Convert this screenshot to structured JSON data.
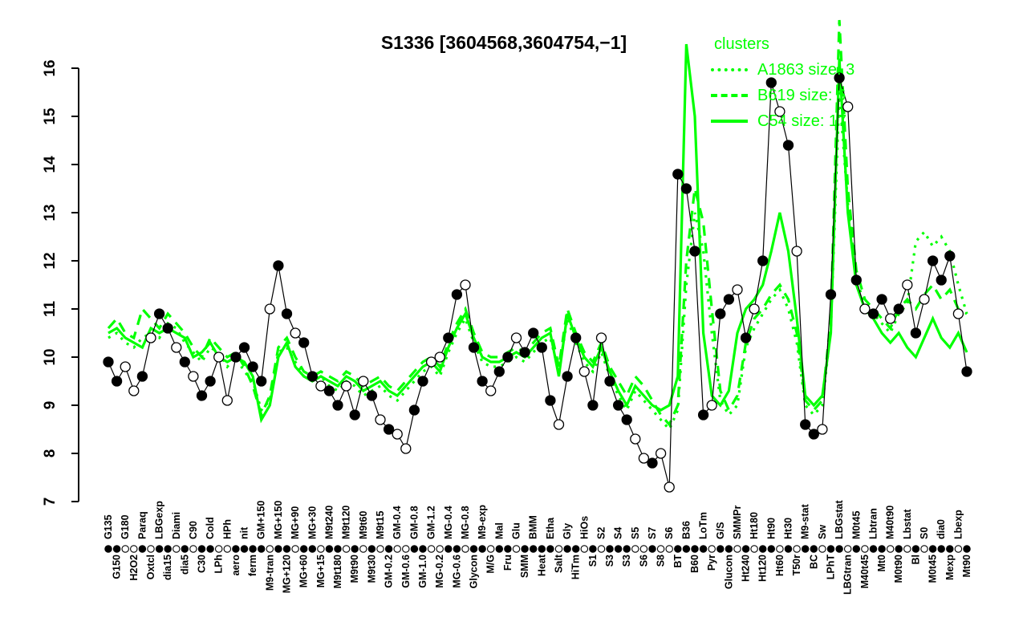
{
  "title": "S1336 [3604568,3604754,−1]",
  "legend": {
    "title": "clusters",
    "entries": [
      {
        "label": "A1863 size: 3",
        "style": "dotted"
      },
      {
        "label": "B619 size: 6",
        "style": "dashed"
      },
      {
        "label": "C54 size: 17",
        "style": "solid"
      }
    ]
  },
  "colors": {
    "cluster_green": "#00FF00",
    "marker_filled": "#000000",
    "marker_open": "#FFFFFF",
    "axis": "#000000"
  },
  "chart_data": {
    "type": "line",
    "title": "S1336 [3604568,3604754,−1]",
    "xlabel": "",
    "ylabel": "",
    "ylim": [
      7,
      16
    ],
    "yticks": [
      7,
      8,
      9,
      10,
      11,
      12,
      13,
      14,
      15,
      16
    ],
    "grid": false,
    "legend_position": "top-right",
    "categories": [
      "G135",
      "G150",
      "G180",
      "H2O2",
      "Paraq",
      "Oxtcl",
      "LBGexp",
      "dia15",
      "Diami",
      "dia5",
      "C90",
      "C30",
      "Cold",
      "LPh",
      "HPh",
      "aero",
      "nit",
      "ferm",
      "GM+150",
      "M9-tran",
      "MG+150",
      "MG+120",
      "MG+90",
      "MG+60",
      "MG+30",
      "MG+15",
      "M9t240",
      "M9t180",
      "M9t120",
      "M9t90",
      "M9t60",
      "M9t30",
      "M9t15",
      "GM-0.2",
      "GM-0.4",
      "GM-0.6",
      "GM-0.8",
      "GM-1.0",
      "GM-1.2",
      "MG-0.2",
      "MG-0.4",
      "MG-0.6",
      "MG-0.8",
      "Glycon",
      "M9-exp",
      "M/G",
      "Mal",
      "Fru",
      "Glu",
      "SMM",
      "BMM",
      "Heat",
      "Etha",
      "Salt",
      "Gly",
      "HiTm",
      "HiOs",
      "S1",
      "S2",
      "S3",
      "S4",
      "S3",
      "S5",
      "S6",
      "S7",
      "S8",
      "S6",
      "BT",
      "B36",
      "B60",
      "LoTm",
      "Pyr",
      "G/S",
      "Glucon",
      "SMMPr",
      "Ht240",
      "Ht180",
      "Ht120",
      "Ht90",
      "Ht60",
      "Ht30",
      "T50r",
      "M9-stat",
      "BC",
      "Sw",
      "LPhT",
      "LBGstat",
      "LBGtran",
      "M0t45",
      "M40t45",
      "Lbtran",
      "Mt0",
      "M40t90",
      "M0t90",
      "Lbstat",
      "Bl",
      "S0",
      "M0t45",
      "dia0",
      "Mexp",
      "Lbexp",
      "Mt90"
    ],
    "series": [
      {
        "name": "S1336",
        "type": "line+markers",
        "color": "#000000",
        "values": [
          9.9,
          9.5,
          9.8,
          9.3,
          9.6,
          10.4,
          10.9,
          10.6,
          10.2,
          9.9,
          9.6,
          9.2,
          9.5,
          10.0,
          9.1,
          10.0,
          10.2,
          9.8,
          9.5,
          11.0,
          11.9,
          10.9,
          10.5,
          10.3,
          9.6,
          9.4,
          9.3,
          9.0,
          9.4,
          8.8,
          9.5,
          9.2,
          8.7,
          8.5,
          8.4,
          8.1,
          8.9,
          9.5,
          9.9,
          10.0,
          10.4,
          11.3,
          11.5,
          10.2,
          9.5,
          9.3,
          9.7,
          10.0,
          10.4,
          10.1,
          10.5,
          10.2,
          9.1,
          8.6,
          9.6,
          10.4,
          9.7,
          9.0,
          10.4,
          9.5,
          9.0,
          8.7,
          8.3,
          7.9,
          7.8,
          8.0,
          7.3,
          13.8,
          13.5,
          12.2,
          8.8,
          9.0,
          10.9,
          11.2,
          11.4,
          10.4,
          11.0,
          12.0,
          15.7,
          15.1,
          14.4,
          12.2,
          8.6,
          8.4,
          8.5,
          11.3,
          15.8,
          15.2,
          11.6,
          11.0,
          10.9,
          11.2,
          10.8,
          11.0,
          11.5,
          10.5,
          11.2,
          12.0,
          11.6,
          12.1,
          10.9,
          9.7
        ],
        "fills": [
          "f",
          "f",
          "o",
          "o",
          "f",
          "o",
          "f",
          "f",
          "o",
          "f",
          "o",
          "f",
          "f",
          "o",
          "o",
          "f",
          "f",
          "f",
          "f",
          "o",
          "f",
          "f",
          "o",
          "f",
          "f",
          "o",
          "f",
          "f",
          "o",
          "f",
          "o",
          "f",
          "o",
          "f",
          "o",
          "o",
          "f",
          "f",
          "o",
          "o",
          "f",
          "f",
          "o",
          "f",
          "f",
          "o",
          "f",
          "f",
          "o",
          "f",
          "f",
          "f",
          "f",
          "o",
          "f",
          "f",
          "o",
          "f",
          "o",
          "f",
          "f",
          "f",
          "o",
          "o",
          "f",
          "o",
          "o",
          "f",
          "f",
          "f",
          "f",
          "o",
          "f",
          "f",
          "o",
          "f",
          "o",
          "f",
          "f",
          "o",
          "f",
          "o",
          "f",
          "f",
          "o",
          "f",
          "f",
          "o",
          "f",
          "o",
          "f",
          "f",
          "o",
          "f",
          "o",
          "f",
          "o",
          "f",
          "f",
          "f",
          "o",
          "f"
        ]
      },
      {
        "name": "A1863",
        "size": 3,
        "style": "dotted",
        "color": "#00FF00",
        "values": [
          10.4,
          10.5,
          10.3,
          10.2,
          10.4,
          10.5,
          10.4,
          10.7,
          10.6,
          10.3,
          10.1,
          9.9,
          10.2,
          10.1,
          9.8,
          10.0,
          9.7,
          9.5,
          8.9,
          9.1,
          10.1,
          10.2,
          9.9,
          9.6,
          9.5,
          9.6,
          9.4,
          9.3,
          9.5,
          9.4,
          9.2,
          9.3,
          9.4,
          9.2,
          9.1,
          9.3,
          9.5,
          9.7,
          9.8,
          9.6,
          10.1,
          10.5,
          10.8,
          10.3,
          9.9,
          9.8,
          9.8,
          9.9,
          10.0,
          9.9,
          10.1,
          10.3,
          10.4,
          9.7,
          10.8,
          10.3,
          9.9,
          9.7,
          10.1,
          9.6,
          9.2,
          8.9,
          9.3,
          9.1,
          8.9,
          8.7,
          8.5,
          8.9,
          11.5,
          13.0,
          12.2,
          10.5,
          9.1,
          8.8,
          9.0,
          10.2,
          10.6,
          10.9,
          11.2,
          11.4,
          11.0,
          10.3,
          9.0,
          8.8,
          9.0,
          10.6,
          15.5,
          13.2,
          11.6,
          11.1,
          10.9,
          10.7,
          10.5,
          10.9,
          11.1,
          12.4,
          12.6,
          12.3,
          12.5,
          12.2,
          11.5,
          10.9
        ]
      },
      {
        "name": "B619",
        "size": 6,
        "style": "dashed",
        "color": "#00FF00",
        "values": [
          10.6,
          10.8,
          10.5,
          10.4,
          11.0,
          10.8,
          10.6,
          10.9,
          10.7,
          10.5,
          10.2,
          10.0,
          10.4,
          10.2,
          10.0,
          10.1,
          9.8,
          9.4,
          8.8,
          9.2,
          10.2,
          10.4,
          10.0,
          9.7,
          9.6,
          9.7,
          9.6,
          9.5,
          9.7,
          9.6,
          9.4,
          9.5,
          9.6,
          9.4,
          9.3,
          9.5,
          9.7,
          9.9,
          10.0,
          9.8,
          10.3,
          10.7,
          11.0,
          10.5,
          10.1,
          10.0,
          10.0,
          10.1,
          10.2,
          10.1,
          10.3,
          10.5,
          10.6,
          9.8,
          11.0,
          10.5,
          10.1,
          9.9,
          10.3,
          9.8,
          9.5,
          9.2,
          9.6,
          9.4,
          9.1,
          8.8,
          8.6,
          9.0,
          12.0,
          13.5,
          12.8,
          11.0,
          9.3,
          8.9,
          9.2,
          10.3,
          10.8,
          11.0,
          11.3,
          11.5,
          11.2,
          10.5,
          9.1,
          8.9,
          9.1,
          10.8,
          17.0,
          13.5,
          11.8,
          11.2,
          11.0,
          10.8,
          10.6,
          11.0,
          11.2,
          11.0,
          11.3,
          11.5,
          11.2,
          11.4,
          11.0,
          10.9
        ]
      },
      {
        "name": "C54",
        "size": 17,
        "style": "solid",
        "color": "#00FF00",
        "values": [
          10.5,
          10.6,
          10.4,
          10.3,
          10.2,
          10.6,
          10.5,
          10.6,
          10.5,
          10.4,
          10.0,
          10.1,
          10.3,
          10.0,
          9.9,
          10.0,
          9.9,
          9.6,
          8.7,
          9.0,
          10.0,
          10.3,
          9.8,
          9.6,
          9.5,
          9.6,
          9.5,
          9.4,
          9.6,
          9.5,
          9.3,
          9.4,
          9.5,
          9.3,
          9.2,
          9.4,
          9.6,
          9.8,
          9.9,
          9.7,
          10.2,
          10.6,
          10.9,
          10.4,
          10.0,
          9.9,
          9.9,
          10.0,
          10.1,
          10.0,
          10.2,
          10.4,
          10.5,
          9.6,
          10.9,
          10.4,
          10.0,
          9.8,
          10.2,
          9.7,
          9.3,
          9.0,
          9.4,
          9.2,
          9.0,
          8.9,
          9.0,
          9.6,
          16.5,
          15.0,
          10.5,
          9.2,
          9.0,
          9.3,
          10.5,
          11.0,
          11.2,
          11.5,
          12.2,
          13.0,
          12.2,
          10.8,
          9.2,
          9.0,
          9.2,
          10.5,
          16.2,
          13.0,
          11.5,
          11.0,
          10.8,
          10.5,
          10.3,
          10.5,
          10.2,
          10.0,
          10.4,
          10.8,
          10.4,
          10.2,
          10.5,
          10.1
        ]
      }
    ]
  }
}
